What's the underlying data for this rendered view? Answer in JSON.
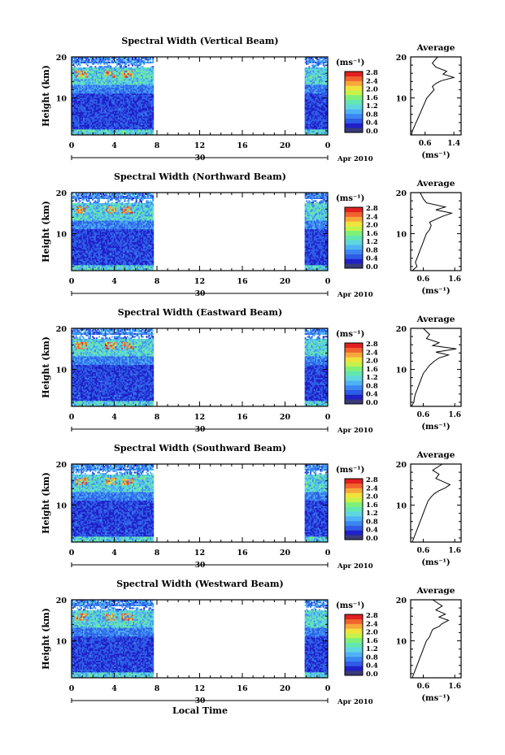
{
  "figure": {
    "xlabel": "Local Time",
    "date_label": "Apr 2010",
    "day_label": "30",
    "ylabel": "Height (km)",
    "unit_label": "(ms⁻¹)",
    "average_title": "Average",
    "average_xlabel": "(ms⁻¹)"
  },
  "colorbar": {
    "tick_labels": [
      "0.0",
      "0.4",
      "0.8",
      "1.2",
      "1.6",
      "2.0",
      "2.4",
      "2.8"
    ],
    "colors": [
      "#3a3a7a",
      "#2020c8",
      "#2e5ce6",
      "#3b86f2",
      "#4fb2f5",
      "#5fd6e0",
      "#63e6b0",
      "#7ef07a",
      "#c6f24a",
      "#f2e23c",
      "#f7a83a",
      "#f2622e",
      "#e02020"
    ]
  },
  "chart_data": [
    {
      "type": "heatmap",
      "title": "Spectral Width (Vertical Beam)",
      "x_ticks": [
        "0",
        "4",
        "8",
        "12",
        "16",
        "20",
        "0"
      ],
      "y_ticks": [
        "20",
        "10"
      ],
      "xlim": [
        0,
        24
      ],
      "ylim": [
        1,
        20
      ],
      "data_gaps": [
        [
          7.8,
          21.8
        ]
      ],
      "profile": {
        "xlim": [
          0.2,
          1.6
        ],
        "x_ticks": [
          "0.6",
          "1.4"
        ],
        "x": [
          0.22,
          0.25,
          0.3,
          0.35,
          0.4,
          0.45,
          0.5,
          0.55,
          0.6,
          0.65,
          0.75,
          0.85,
          0.8,
          0.9,
          1.05,
          1.4,
          1.1,
          1.2,
          0.9,
          0.8,
          0.95
        ],
        "y": [
          1,
          2,
          3,
          4,
          5,
          6,
          7,
          8,
          9,
          10,
          11,
          12,
          12.8,
          13.5,
          14.2,
          15,
          15.8,
          16.5,
          17.5,
          18.5,
          20
        ]
      }
    },
    {
      "type": "heatmap",
      "title": "Spectral Width (Northward Beam)",
      "x_ticks": [
        "0",
        "4",
        "8",
        "12",
        "16",
        "20",
        "0"
      ],
      "y_ticks": [
        "20",
        "10"
      ],
      "xlim": [
        0,
        24
      ],
      "ylim": [
        1,
        20
      ],
      "data_gaps": [
        [
          7.8,
          21.8
        ]
      ],
      "profile": {
        "xlim": [
          0.2,
          1.8
        ],
        "x_ticks": [
          "0.6",
          "1.6"
        ],
        "x": [
          0.25,
          0.4,
          0.35,
          0.4,
          0.45,
          0.5,
          0.55,
          0.6,
          0.65,
          0.7,
          0.8,
          0.85,
          0.8,
          1.0,
          1.2,
          1.5,
          1.0,
          1.3,
          0.7,
          0.6,
          0.5
        ],
        "y": [
          1,
          2,
          3,
          4,
          5,
          6,
          7,
          8,
          9,
          10,
          11,
          12,
          12.8,
          13.5,
          14.2,
          15,
          15.8,
          16.5,
          17.5,
          18.5,
          20
        ]
      }
    },
    {
      "type": "heatmap",
      "title": "Spectral Width (Eastward Beam)",
      "x_ticks": [
        "0",
        "4",
        "8",
        "12",
        "16",
        "20",
        "0"
      ],
      "y_ticks": [
        "20",
        "10"
      ],
      "xlim": [
        0,
        24
      ],
      "ylim": [
        1,
        20
      ],
      "data_gaps": [
        [
          7.8,
          21.8
        ]
      ],
      "profile": {
        "xlim": [
          0.2,
          1.8
        ],
        "x_ticks": [
          "0.6",
          "1.6"
        ],
        "x": [
          0.22,
          0.3,
          0.32,
          0.35,
          0.4,
          0.45,
          0.5,
          0.55,
          0.6,
          0.7,
          0.8,
          0.95,
          1.1,
          1.4,
          1.0,
          1.65,
          0.9,
          1.1,
          0.7,
          0.8,
          0.6
        ],
        "y": [
          1,
          2,
          3,
          4,
          5,
          6,
          7,
          8,
          9,
          10,
          11,
          12,
          12.8,
          13.5,
          14.2,
          15,
          15.8,
          16.5,
          17.5,
          18.5,
          20
        ]
      }
    },
    {
      "type": "heatmap",
      "title": "Spectral Width (Southward Beam)",
      "x_ticks": [
        "0",
        "4",
        "8",
        "12",
        "16",
        "20",
        "0"
      ],
      "y_ticks": [
        "20",
        "10"
      ],
      "xlim": [
        0,
        24
      ],
      "ylim": [
        1,
        20
      ],
      "data_gaps": [
        [
          7.8,
          21.8
        ]
      ],
      "profile": {
        "xlim": [
          0.2,
          1.8
        ],
        "x_ticks": [
          "0.6",
          "1.6"
        ],
        "x": [
          0.25,
          0.3,
          0.35,
          0.4,
          0.45,
          0.5,
          0.55,
          0.6,
          0.65,
          0.7,
          0.75,
          0.85,
          0.95,
          1.1,
          1.3,
          1.45,
          1.2,
          1.0,
          1.1,
          0.9,
          1.2
        ],
        "y": [
          1,
          2,
          3,
          4,
          5,
          6,
          7,
          8,
          9,
          10,
          11,
          12,
          12.8,
          13.5,
          14.2,
          15,
          15.8,
          16.5,
          17.5,
          18.5,
          20
        ]
      }
    },
    {
      "type": "heatmap",
      "title": "Spectral Width (Westward Beam)",
      "x_ticks": [
        "0",
        "4",
        "8",
        "12",
        "16",
        "20",
        "0"
      ],
      "y_ticks": [
        "20",
        "10"
      ],
      "xlim": [
        0,
        24
      ],
      "ylim": [
        1,
        20
      ],
      "data_gaps": [
        [
          7.8,
          21.8
        ]
      ],
      "profile": {
        "xlim": [
          0.2,
          1.8
        ],
        "x_ticks": [
          "0.6",
          "1.6"
        ],
        "x": [
          0.25,
          0.3,
          0.35,
          0.4,
          0.45,
          0.5,
          0.55,
          0.6,
          0.65,
          0.7,
          0.8,
          0.85,
          0.9,
          1.1,
          1.2,
          1.4,
          1.1,
          1.3,
          1.0,
          1.2,
          0.9
        ],
        "y": [
          1,
          2,
          3,
          4,
          5,
          6,
          7,
          8,
          9,
          10,
          11,
          12,
          12.8,
          13.5,
          14.2,
          15,
          15.8,
          16.5,
          17.5,
          18.5,
          20
        ]
      }
    }
  ]
}
